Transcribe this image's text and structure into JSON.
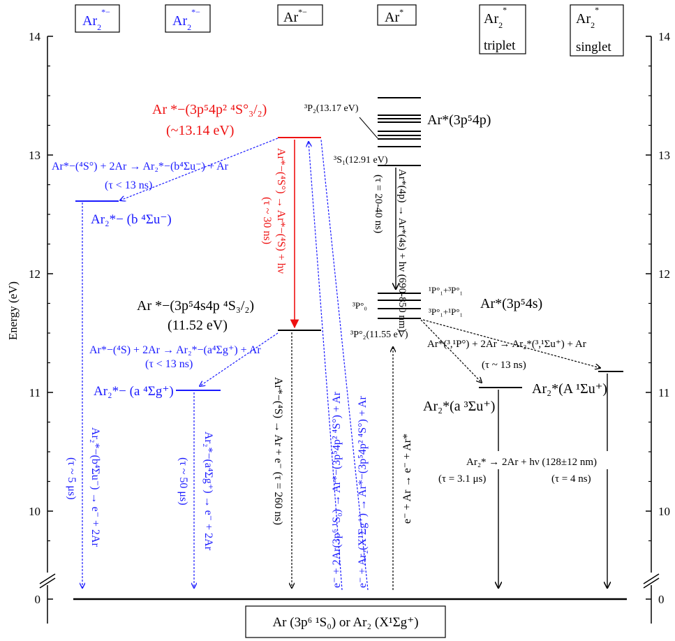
{
  "colors": {
    "black": "#000000",
    "blue": "#1a1aff",
    "red": "#ee1111"
  },
  "axis": {
    "label": "Energy (eV)",
    "ticks": [
      {
        "value": 14,
        "label": "14"
      },
      {
        "value": 13,
        "label": "13"
      },
      {
        "value": 12,
        "label": "12"
      },
      {
        "value": 11,
        "label": "11"
      },
      {
        "value": 10,
        "label": "10"
      },
      {
        "value": 0,
        "label": "0"
      }
    ],
    "ticks_right": [
      {
        "value": 14,
        "label": "14"
      },
      {
        "value": 13,
        "label": "13"
      },
      {
        "value": 12,
        "label": "12"
      },
      {
        "value": 11,
        "label": "11"
      },
      {
        "value": 10,
        "label": "10"
      },
      {
        "value": 0,
        "label": "0"
      }
    ]
  },
  "headers": {
    "ar2_anion_1": {
      "base": "Ar",
      "sub": "2",
      "sup": "*−"
    },
    "ar2_anion_2": {
      "base": "Ar",
      "sub": "2",
      "sup": "*−"
    },
    "ar_anion": {
      "base": "Ar",
      "sup": "*−"
    },
    "ar_excited": {
      "base": "Ar",
      "sup": "*"
    },
    "ar2_triplet": {
      "base": "Ar",
      "sub": "2",
      "sup": "*",
      "line2": "triplet"
    },
    "ar2_singlet": {
      "base": "Ar",
      "sub": "2",
      "sup": "*",
      "line2": "singlet"
    }
  },
  "levels": {
    "red_state_line1": "Ar *−(3p⁵4p²  ⁴S°₃/₂)",
    "red_state_line2": "(~13.14 eV)",
    "b_state": "Ar₂*− (b ⁴Σu⁻)",
    "ar_anion_4s4p_line1": "Ar *−(3p⁵4s4p ⁴S₃/₂)",
    "ar_anion_4s4p_line2": "(11.52 eV)",
    "a_state_anion": "Ar₂*− (a ⁴Σg⁺)",
    "ar_4p_state": "Ar*(3p⁵4p)",
    "ar_4s_state": "Ar*(3p⁵4s)",
    "p2_1317": "³P₂(13.17 eV)",
    "s1_1291": "³S₁(12.91 eV)",
    "p1_pair_a": "¹P°₁+³P°₁",
    "p_pair_b": "³P°₁+¹P°₁",
    "p0": "³P°₀",
    "p2_1155": "³P°₂(11.55 eV)",
    "ar2_a3": "Ar₂*(a ³Σu⁺)",
    "ar2_A1": "Ar₂*(A ¹Σu⁺)",
    "ground": "Ar (3p⁶ ¹S₀) or Ar₂ (X¹Σg⁺)"
  },
  "processes": {
    "b_formation": "Ar*−(⁴S°) + 2Ar → Ar₂*−(b⁴Σu⁻) + Ar",
    "b_formation_tau": "(τ < 13 ns)",
    "red_decay": "Ar*−(⁴S°) → Ar*−(⁴S) + hν",
    "red_decay_tau": "(τ ~ 30 ns)",
    "a_formation": "Ar*−(⁴S) + 2Ar → Ar₂*−(a⁴Σg⁺) + Ar",
    "a_formation_tau": "(τ < 13 ns)",
    "b_decay": "Ar₂*−(b⁴Σu⁻) → e⁻ + 2Ar",
    "b_decay_tau": "(τ ~ 5 μs)",
    "a_decay": "Ar₂*−(a⁴Σg⁺) → e⁻ + 2Ar",
    "a_decay_tau": "(τ ~ 50 μs)",
    "ar_anion_decay": "Ar*−(⁴S) → Ar + e⁻  (τ = 260 ns)",
    "recomb_1": "e⁻ + 2Ar(3p⁶ ¹S₀) → Ar*−(3p⁵4p² ⁴S°) + Ar",
    "recomb_2": "e⁻ + Ar₂(X¹Σg⁺) → Ar*−(3p⁵4p² ⁴S°) + Ar",
    "ar_4p_decay": "Ar*(4p) → Ar*(4s) + hν (690-850 nm)",
    "ar_4p_decay_tau": "(τ = 20-40 ns)",
    "excitation": "e⁻ + Ar → e⁻ + Ar*",
    "excimer_formation": "Ar*(³,¹P°) + 2Ar → Ar₂*(³,¹Σu⁺) + Ar",
    "excimer_formation_tau": "(τ ~ 13 ns)",
    "excimer_decay": "Ar₂* → 2Ar + hν (128±12 nm)",
    "triplet_tau": "(τ = 3.1 μs)",
    "singlet_tau": "(τ = 4 ns)"
  }
}
